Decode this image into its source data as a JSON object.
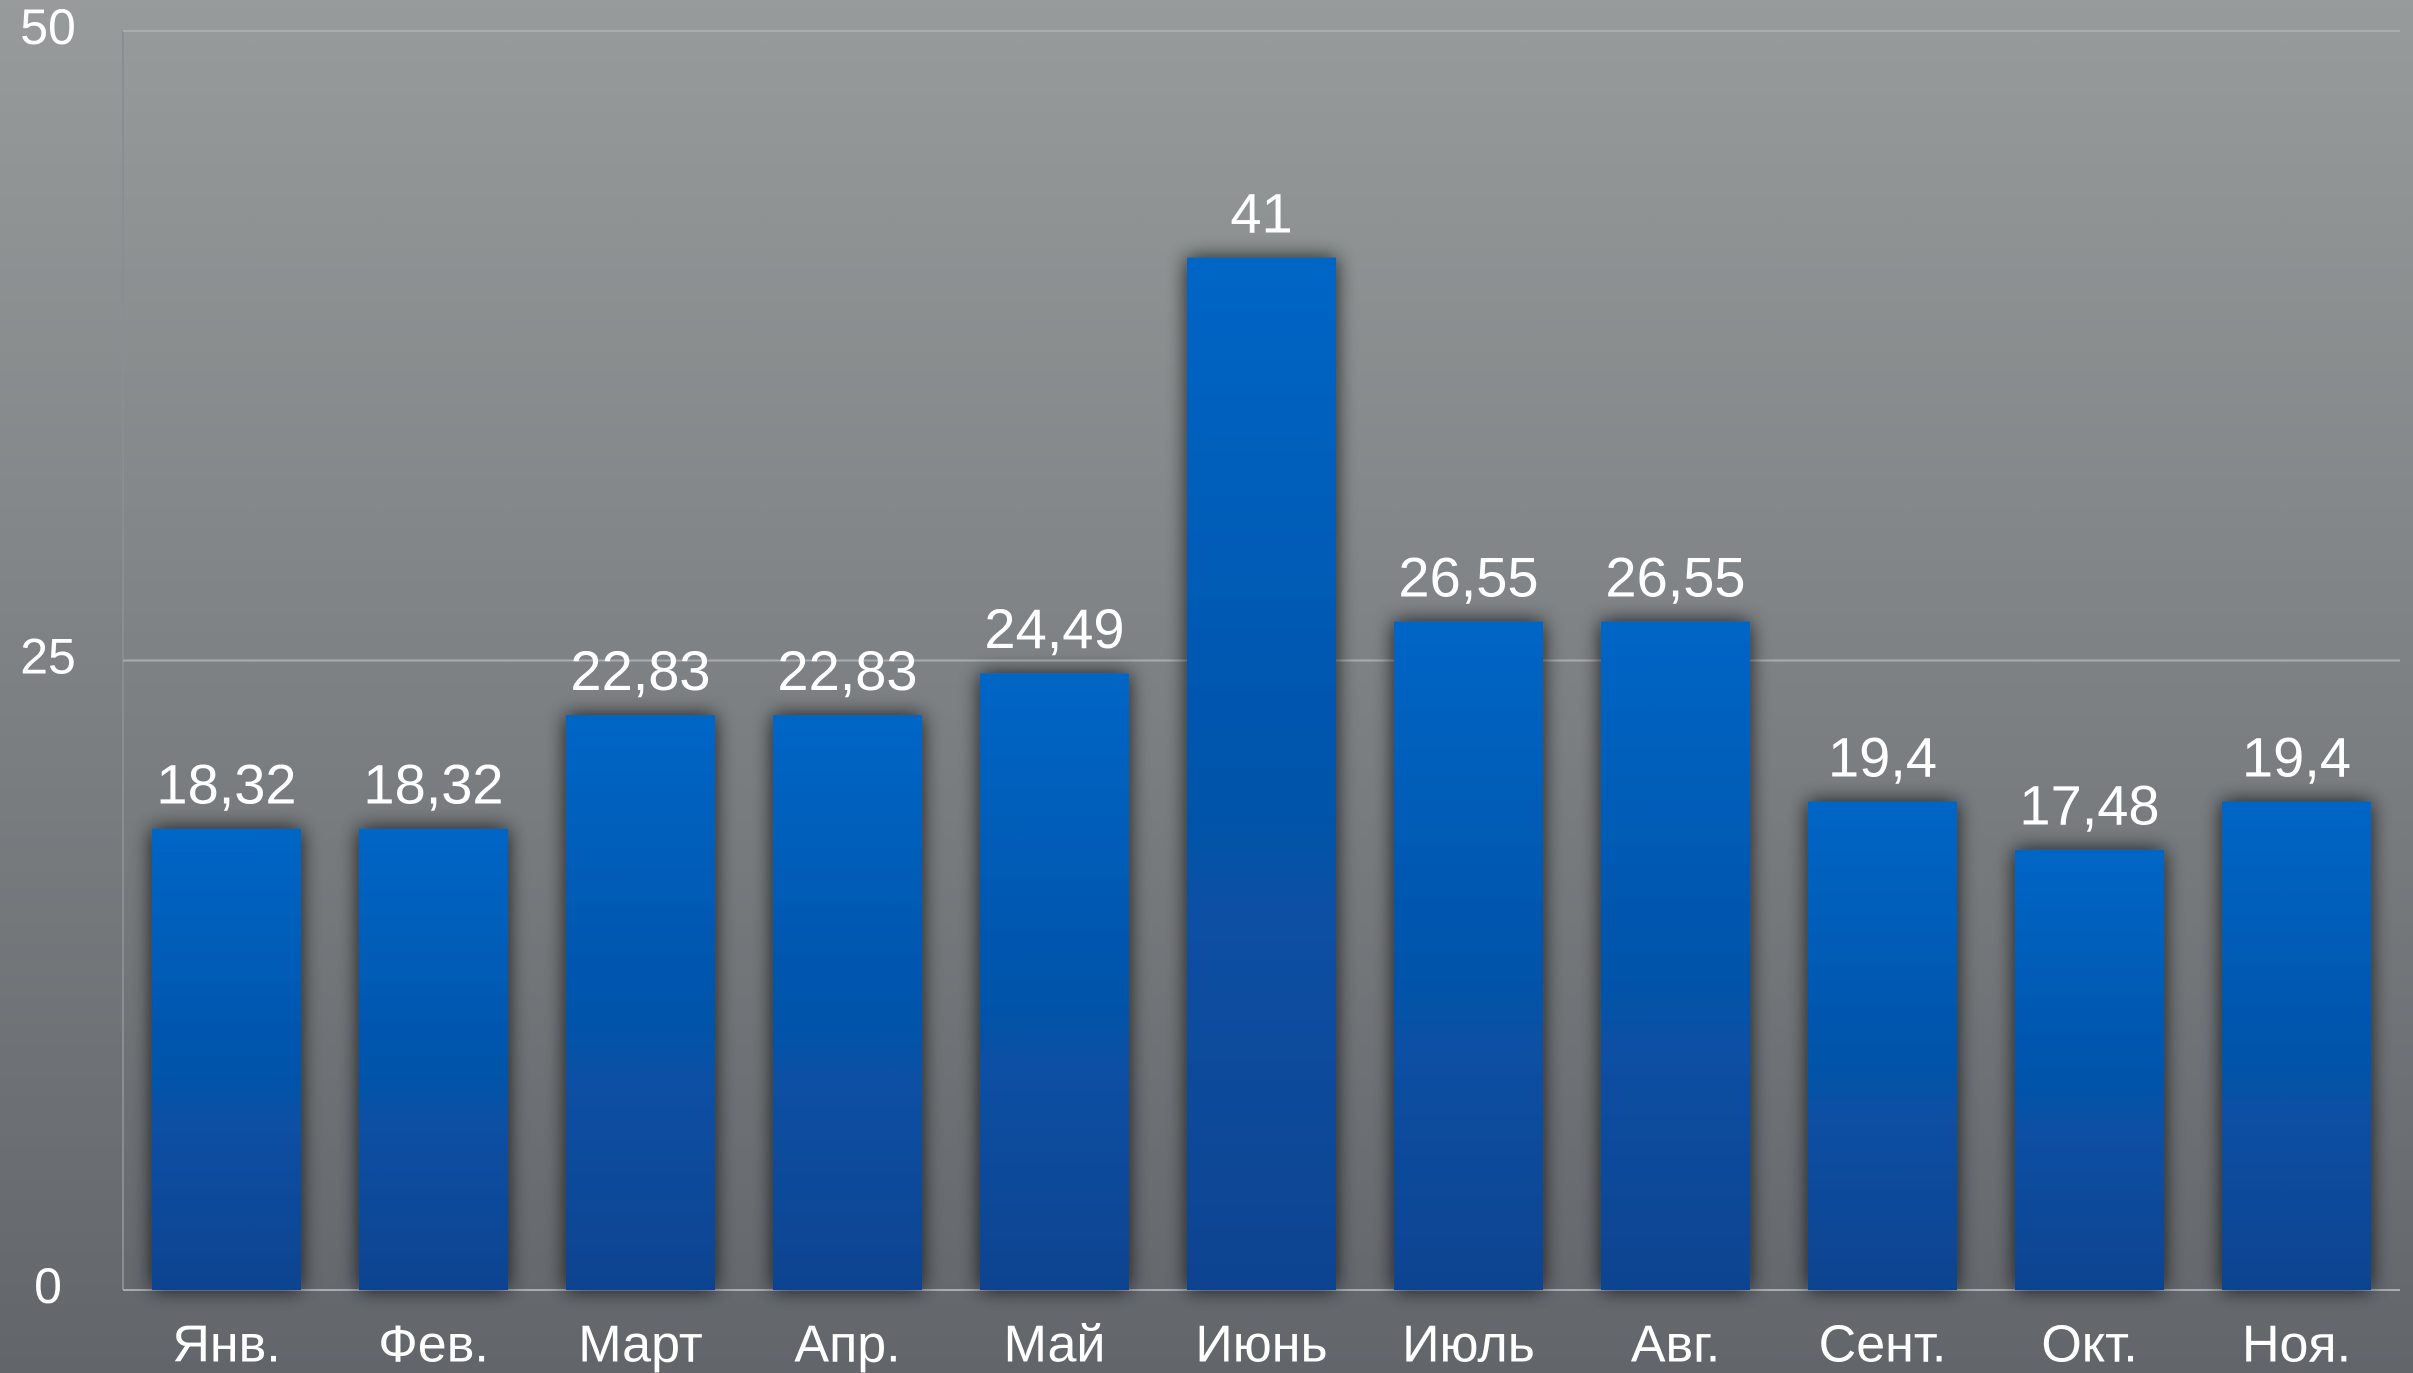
{
  "chart_data": {
    "type": "bar",
    "categories": [
      "Янв.",
      "Фев.",
      "Март",
      "Апр.",
      "Май",
      "Июнь",
      "Июль",
      "Авг.",
      "Сент.",
      "Окт.",
      "Ноя."
    ],
    "values": [
      18.32,
      18.32,
      22.83,
      22.83,
      24.49,
      41,
      26.55,
      26.55,
      19.4,
      17.48,
      19.4
    ],
    "value_labels": [
      "18,32",
      "18,32",
      "22,83",
      "22,83",
      "24,49",
      "41",
      "26,55",
      "26,55",
      "19,4",
      "17,48",
      "19,4"
    ],
    "color": "#0062bf",
    "ylim": [
      0,
      50
    ],
    "yticks": [
      0,
      25,
      50
    ],
    "grid": true
  }
}
